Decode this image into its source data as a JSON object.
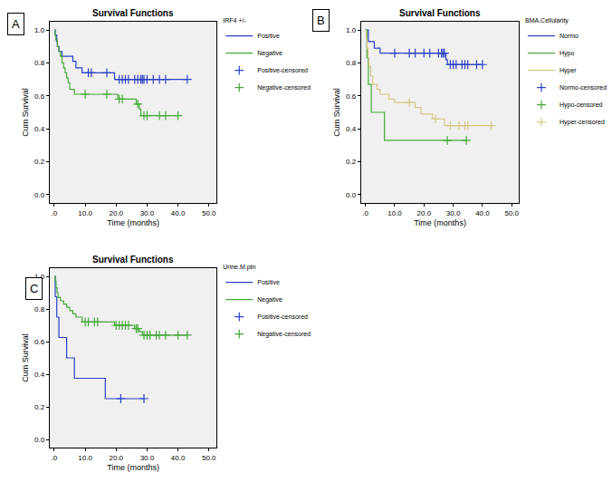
{
  "chart_data": [
    {
      "type": "line",
      "title": "Survival Functions",
      "annotations": [
        "A"
      ],
      "x_label": "Time (months)",
      "y_label": "Cum Survival",
      "legend_title": "IRF4 +/-",
      "legend": "right",
      "grid": false,
      "xlim": [
        -1.5,
        52.5
      ],
      "ylim": [
        -0.05,
        1.05
      ],
      "xticks": [
        {
          "value": 0,
          "label": ".0"
        },
        {
          "value": 10,
          "label": "10.0"
        },
        {
          "value": 20,
          "label": "20.0"
        },
        {
          "value": 30,
          "label": "30.0"
        },
        {
          "value": 40,
          "label": "40.0"
        },
        {
          "value": 50,
          "label": "50.0"
        }
      ],
      "yticks": [
        {
          "value": 0,
          "label": "0.0"
        },
        {
          "value": 0.2,
          "label": "0.2"
        },
        {
          "value": 0.4,
          "label": "0.4"
        },
        {
          "value": 0.6,
          "label": "0.6"
        },
        {
          "value": 0.8,
          "label": "0.8"
        },
        {
          "value": 1,
          "label": "1.0"
        }
      ],
      "series": [
        {
          "name": "Positive",
          "color": "#2b3ec7",
          "type": "line",
          "line_style": "step",
          "x": [
            0,
            0.3,
            0.8,
            1.0,
            1.5,
            2.5,
            6,
            7,
            9,
            19.5,
            43
          ],
          "values": [
            1,
            0.97,
            0.93,
            0.9,
            0.87,
            0.84,
            0.81,
            0.77,
            0.74,
            0.7,
            0.7
          ]
        },
        {
          "name": "Negative",
          "color": "#45a83a",
          "type": "line",
          "line_style": "step",
          "x": [
            0,
            0.2,
            0.5,
            1,
            1.5,
            2,
            2.5,
            3,
            3.5,
            4,
            4.5,
            5,
            6.5,
            20.5,
            26.5,
            27.5,
            28,
            40
          ],
          "values": [
            1,
            0.97,
            0.94,
            0.9,
            0.87,
            0.84,
            0.8,
            0.77,
            0.74,
            0.71,
            0.68,
            0.64,
            0.61,
            0.58,
            0.55,
            0.52,
            0.48,
            0.48
          ]
        },
        {
          "name": "Positive-censored",
          "color": "#2b3ec7",
          "type": "scatter",
          "marker": "cross",
          "x": [
            11,
            12,
            17,
            21,
            22,
            23,
            24,
            26,
            27,
            28,
            28.5,
            29,
            30,
            32,
            34,
            36,
            43
          ],
          "values": [
            0.74,
            0.74,
            0.74,
            0.7,
            0.7,
            0.7,
            0.7,
            0.7,
            0.7,
            0.7,
            0.7,
            0.7,
            0.7,
            0.7,
            0.7,
            0.7,
            0.7
          ]
        },
        {
          "name": "Negative-censored",
          "color": "#45a83a",
          "type": "scatter",
          "marker": "cross",
          "x": [
            10,
            17,
            21,
            22,
            27,
            29,
            30,
            34,
            36,
            40
          ],
          "values": [
            0.61,
            0.61,
            0.58,
            0.58,
            0.55,
            0.48,
            0.48,
            0.48,
            0.48,
            0.48
          ]
        }
      ]
    },
    {
      "type": "line",
      "title": "Survival Functions",
      "annotations": [
        "B"
      ],
      "x_label": "Time (months)",
      "y_label": "Cum Survival",
      "legend_title": "BMA.Cellularity",
      "legend": "right",
      "grid": false,
      "xlim": [
        -1.5,
        52.5
      ],
      "ylim": [
        -0.05,
        1.05
      ],
      "xticks": [
        {
          "value": 0,
          "label": ".0"
        },
        {
          "value": 10,
          "label": "10.0"
        },
        {
          "value": 20,
          "label": "20.0"
        },
        {
          "value": 30,
          "label": "30.0"
        },
        {
          "value": 40,
          "label": "40.0"
        },
        {
          "value": 50,
          "label": "50.0"
        }
      ],
      "yticks": [
        {
          "value": 0,
          "label": "0.0"
        },
        {
          "value": 0.2,
          "label": "0.2"
        },
        {
          "value": 0.4,
          "label": "0.4"
        },
        {
          "value": 0.6,
          "label": "0.6"
        },
        {
          "value": 0.8,
          "label": "0.8"
        },
        {
          "value": 1,
          "label": "1.0"
        }
      ],
      "series": [
        {
          "name": "Normo",
          "color": "#2b3ec7",
          "type": "line",
          "line_style": "step",
          "x": [
            0,
            1,
            3,
            5,
            27.5,
            28,
            40
          ],
          "values": [
            1,
            0.93,
            0.89,
            0.86,
            0.82,
            0.79,
            0.79
          ]
        },
        {
          "name": "Hypo",
          "color": "#45a83a",
          "type": "line",
          "line_style": "step",
          "x": [
            0,
            0.5,
            1,
            2,
            6.5,
            34.5
          ],
          "values": [
            1,
            0.83,
            0.67,
            0.5,
            0.33,
            0.33
          ]
        },
        {
          "name": "Hyper",
          "color": "#d6c785",
          "type": "line",
          "line_style": "step",
          "x": [
            0,
            0.3,
            0.6,
            0.9,
            1.2,
            1.8,
            2.5,
            4,
            5,
            8,
            10,
            17,
            19,
            23,
            27,
            43
          ],
          "values": [
            1,
            0.94,
            0.89,
            0.83,
            0.78,
            0.72,
            0.67,
            0.64,
            0.61,
            0.58,
            0.56,
            0.53,
            0.49,
            0.46,
            0.42,
            0.42
          ]
        },
        {
          "name": "Normo-censored",
          "color": "#2b3ec7",
          "type": "scatter",
          "marker": "cross",
          "x": [
            10,
            15,
            17,
            20,
            22,
            25,
            26,
            26.5,
            27,
            29,
            30,
            31,
            33,
            34,
            35,
            38,
            40
          ],
          "values": [
            0.86,
            0.86,
            0.86,
            0.86,
            0.86,
            0.86,
            0.86,
            0.86,
            0.86,
            0.79,
            0.79,
            0.79,
            0.79,
            0.79,
            0.79,
            0.79,
            0.79
          ]
        },
        {
          "name": "Hypo-censored",
          "color": "#45a83a",
          "type": "scatter",
          "marker": "cross",
          "x": [
            28,
            34.5
          ],
          "values": [
            0.33,
            0.33
          ]
        },
        {
          "name": "Hyper-censored",
          "color": "#d6c785",
          "type": "scatter",
          "marker": "cross",
          "x": [
            15,
            24,
            29,
            32,
            34,
            35,
            43
          ],
          "values": [
            0.56,
            0.46,
            0.42,
            0.42,
            0.42,
            0.42,
            0.42
          ]
        }
      ]
    },
    {
      "type": "line",
      "title": "Survival Functions",
      "annotations": [
        "C"
      ],
      "x_label": "Time (months)",
      "y_label": "Cum Survival",
      "legend_title": "Urine.M.ptn",
      "legend": "right",
      "grid": false,
      "xlim": [
        -1.5,
        52.5
      ],
      "ylim": [
        -0.05,
        1.05
      ],
      "xticks": [
        {
          "value": 0,
          "label": ".0"
        },
        {
          "value": 10,
          "label": "10.0"
        },
        {
          "value": 20,
          "label": "20.0"
        },
        {
          "value": 30,
          "label": "30.0"
        },
        {
          "value": 40,
          "label": "40.0"
        },
        {
          "value": 50,
          "label": "50.0"
        }
      ],
      "yticks": [
        {
          "value": 0,
          "label": "0.0"
        },
        {
          "value": 0.2,
          "label": "0.2"
        },
        {
          "value": 0.4,
          "label": "0.4"
        },
        {
          "value": 0.6,
          "label": "0.6"
        },
        {
          "value": 0.8,
          "label": "0.8"
        },
        {
          "value": 1,
          "label": "1.0"
        }
      ],
      "series": [
        {
          "name": "Positive",
          "color": "#2b3ec7",
          "type": "line",
          "line_style": "step",
          "x": [
            0,
            0.3,
            0.8,
            1.5,
            4,
            6.5,
            16.5,
            29
          ],
          "values": [
            1,
            0.875,
            0.75,
            0.625,
            0.5,
            0.375,
            0.25,
            0.25
          ]
        },
        {
          "name": "Negative",
          "color": "#45a83a",
          "type": "line",
          "line_style": "step",
          "x": [
            0,
            0.3,
            0.6,
            0.9,
            1.2,
            2,
            3,
            4,
            5,
            6,
            7,
            9,
            19.5,
            26,
            27.5,
            28.5,
            43
          ],
          "values": [
            1,
            0.97,
            0.93,
            0.9,
            0.87,
            0.85,
            0.83,
            0.81,
            0.79,
            0.77,
            0.75,
            0.72,
            0.7,
            0.68,
            0.66,
            0.64,
            0.64
          ]
        },
        {
          "name": "Positive-censored",
          "color": "#2b3ec7",
          "type": "scatter",
          "marker": "cross",
          "x": [
            21.5,
            29
          ],
          "values": [
            0.25,
            0.25
          ]
        },
        {
          "name": "Negative-censored",
          "color": "#45a83a",
          "type": "scatter",
          "marker": "cross",
          "x": [
            10,
            11,
            13,
            14,
            20,
            21,
            22,
            23,
            24,
            26.5,
            27,
            29,
            30,
            31,
            33,
            34,
            36,
            40,
            43
          ],
          "values": [
            0.72,
            0.72,
            0.72,
            0.72,
            0.7,
            0.7,
            0.7,
            0.7,
            0.7,
            0.68,
            0.68,
            0.64,
            0.64,
            0.64,
            0.64,
            0.64,
            0.64,
            0.64,
            0.64
          ]
        }
      ]
    }
  ]
}
